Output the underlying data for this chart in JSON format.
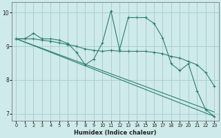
{
  "background_color": "#ceeaea",
  "grid_color": "#aacfcf",
  "line_color": "#2d7d6e",
  "xlabel": "Humidex (Indice chaleur)",
  "xlim": [
    -0.5,
    23.5
  ],
  "ylim": [
    6.8,
    10.3
  ],
  "xticks": [
    0,
    1,
    2,
    3,
    4,
    5,
    6,
    7,
    8,
    9,
    10,
    11,
    12,
    13,
    14,
    15,
    16,
    17,
    18,
    19,
    20,
    21,
    22,
    23
  ],
  "yticks": [
    7,
    8,
    9,
    10
  ],
  "series_jagged": {
    "x": [
      0,
      1,
      2,
      3,
      4,
      5,
      6,
      7,
      8,
      9,
      10,
      11,
      12,
      13,
      14,
      15,
      16,
      17,
      18,
      19,
      20,
      21,
      22,
      23
    ],
    "y": [
      9.22,
      9.22,
      9.38,
      9.22,
      9.22,
      9.18,
      9.08,
      8.82,
      8.45,
      8.62,
      9.1,
      10.05,
      8.9,
      9.85,
      9.85,
      9.85,
      9.68,
      9.25,
      8.48,
      8.28,
      8.48,
      7.68,
      7.12,
      6.92
    ]
  },
  "series_smooth": {
    "x": [
      0,
      1,
      2,
      3,
      4,
      5,
      6,
      7,
      8,
      9,
      10,
      11,
      12,
      13,
      14,
      15,
      16,
      17,
      18,
      19,
      20,
      21,
      22,
      23
    ],
    "y": [
      9.22,
      9.22,
      9.22,
      9.18,
      9.15,
      9.1,
      9.05,
      9.0,
      8.92,
      8.88,
      8.85,
      8.88,
      8.85,
      8.85,
      8.85,
      8.85,
      8.82,
      8.78,
      8.7,
      8.65,
      8.55,
      8.45,
      8.22,
      7.82
    ]
  },
  "line1": {
    "x": [
      0,
      23
    ],
    "y": [
      9.22,
      7.05
    ]
  },
  "line2": {
    "x": [
      0,
      23
    ],
    "y": [
      9.22,
      6.92
    ]
  }
}
